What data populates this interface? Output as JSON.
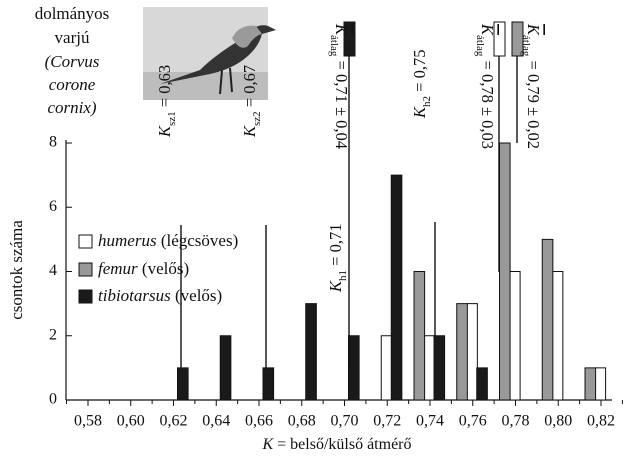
{
  "chart_data": {
    "type": "bar",
    "x_label": {
      "text": "K",
      "rest": " = belső/külső átmérő"
    },
    "y_label": "csontok száma",
    "categories": [
      "0,58",
      "0,60",
      "0,62",
      "0,64",
      "0,66",
      "0,68",
      "0,70",
      "0,72",
      "0,74",
      "0,76",
      "0,78",
      "0,80",
      "0,82"
    ],
    "series": [
      {
        "name": "humerus (légcsöves)",
        "color": "#ffffff",
        "values": [
          0,
          0,
          0,
          0,
          0,
          0,
          0,
          2,
          2,
          3,
          4,
          4,
          1
        ]
      },
      {
        "name": "femur (velős)",
        "color": "#999999",
        "values": [
          0,
          0,
          0,
          0,
          0,
          0,
          0,
          0,
          4,
          3,
          8,
          5,
          1
        ]
      },
      {
        "name": "tibiotarsus (velős)",
        "color": "#1a1a1a",
        "values": [
          0,
          0,
          1,
          2,
          1,
          3,
          2,
          7,
          2,
          1,
          0,
          0,
          0
        ]
      }
    ],
    "ylim": [
      0,
      8
    ],
    "yticks": [
      0,
      2,
      4,
      6,
      8
    ],
    "annotations": [
      {
        "text": "K",
        "sub": "sz1",
        "value": " = 0,63"
      },
      {
        "text": "K",
        "sub": "sz2",
        "value": " = 0,67"
      },
      {
        "text": "K",
        "sub": "h1",
        "value": " = 0,71"
      },
      {
        "text": "K",
        "sub": "h2",
        "value": " = 0,75"
      },
      {
        "text": "K",
        "sub": "átlag",
        "value": " = 0,71 ± 0,04"
      },
      {
        "text": "K",
        "sub": "átlag",
        "value": " = 0,78 ± 0,03"
      },
      {
        "text": "K",
        "sub": "átlag",
        "value": " = 0,79 ± 0,02"
      }
    ],
    "photo_caption": [
      "dolmányos",
      "varjú",
      "(Corvus",
      "corone",
      "cornix)"
    ]
  }
}
